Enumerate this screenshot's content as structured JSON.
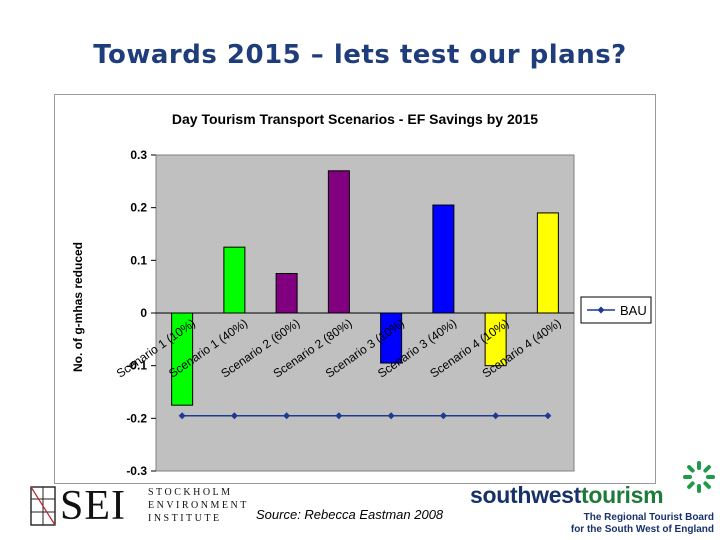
{
  "slide": {
    "title": "Towards 2015 – lets test our plans?",
    "source": "Source: Rebecca Eastman 2008"
  },
  "logos": {
    "sei": {
      "letters": "SEI",
      "lines": [
        "STOCKHOLM",
        "ENVIRONMENT",
        "INSTITUTE"
      ]
    },
    "swt": {
      "name_part1": "southwest",
      "name_part2": "tourism",
      "tagline_line1": "The Regional Tourist Board",
      "tagline_line2": "for the South West of England"
    }
  },
  "chart_data": {
    "type": "bar",
    "title": "Day Tourism Transport Scenarios - EF Savings by 2015",
    "ylabel": "No. of g-mhas reduced",
    "ylim": [
      -0.3,
      0.3
    ],
    "yticks": [
      0.3,
      0.2,
      0.1,
      0,
      -0.1,
      -0.2,
      -0.3
    ],
    "ytick_labels": [
      "0.3",
      "0.2",
      "0.1",
      "0",
      "-0.1",
      "-0.2",
      "-0.3"
    ],
    "grid": false,
    "legend_position": "right",
    "categories": [
      "Scenario 1 (10%)",
      "Scenario 1 (40%)",
      "Scenario 2 (60%)",
      "Scenario 2 (80%)",
      "Scenario 3 (10%)",
      "Scenario 3 (40%)",
      "Scenario 4 (10%)",
      "Scenario 4 (40%)"
    ],
    "values": [
      -0.175,
      0.125,
      0.075,
      0.27,
      -0.095,
      0.205,
      -0.1,
      0.19
    ],
    "bar_colors": [
      "#00ff00",
      "#00ff00",
      "#800080",
      "#800080",
      "#0000ff",
      "#0000ff",
      "#ffff00",
      "#ffff00"
    ],
    "series": [
      {
        "name": "BAU",
        "type": "line",
        "values": [
          -0.195,
          -0.195,
          -0.195,
          -0.195,
          -0.195,
          -0.195,
          -0.195,
          -0.195
        ],
        "color": "#1f3a93"
      }
    ],
    "plot_background": "#c0c0c0"
  }
}
